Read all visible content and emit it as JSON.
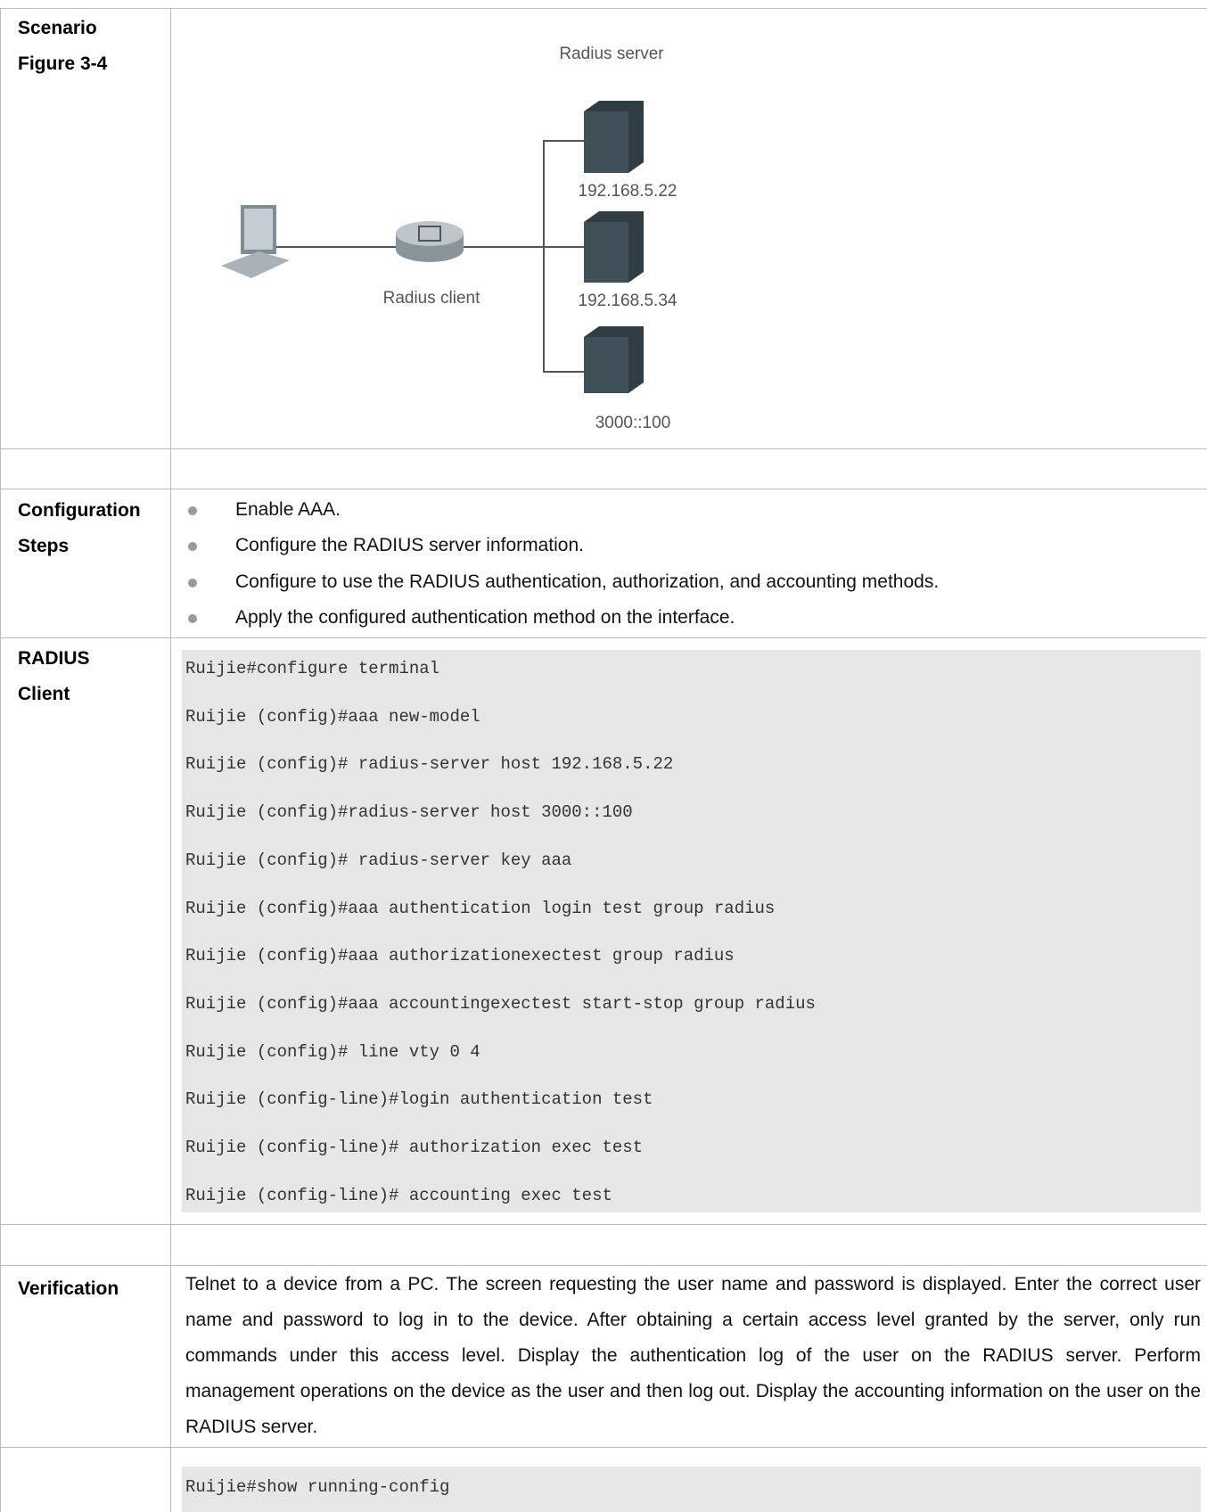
{
  "scenario": {
    "label": [
      "Scenario",
      "Figure 3-4"
    ],
    "figure": {
      "server_title": "Radius server",
      "client": "Radius client",
      "servers": [
        "192.168.5.22",
        "192.168.5.34",
        "3000::100"
      ]
    }
  },
  "steps": {
    "label": [
      "Configuration",
      "Steps"
    ],
    "items": [
      "Enable AAA.",
      "Configure the RADIUS server information.",
      "Configure to use the RADIUS authentication, authorization, and accounting methods.",
      "Apply the configured authentication method on the interface."
    ]
  },
  "client": {
    "label": [
      "RADIUS",
      "Client"
    ],
    "commands": [
      "Ruijie#configure terminal",
      "Ruijie (config)#aaa new-model",
      "Ruijie (config)# radius-server host 192.168.5.22",
      "Ruijie (config)#radius-server host 3000::100",
      "Ruijie (config)# radius-server key aaa",
      "Ruijie (config)#aaa authentication login test group radius",
      "Ruijie (config)#aaa authorizationexectest group radius",
      "Ruijie (config)#aaa accountingexectest start-stop group radius",
      "Ruijie (config)# line vty 0 4",
      "Ruijie (config-line)#login authentication test",
      "Ruijie (config-line)# authorization exec test",
      "Ruijie (config-line)# accounting exec test"
    ]
  },
  "verification": {
    "label": "Verification",
    "text": "Telnet to a device from a PC. The screen requesting the user name and password is displayed. Enter the correct user name and password to log in to the device. After obtaining a certain access level granted by the server, only run commands under this access level. Display the authentication log of the user on the RADIUS server. Perform management operations on the device as the user and then log out. Display the accounting information on the user on the RADIUS server.",
    "commands": [
      "Ruijie#show running-config"
    ]
  }
}
